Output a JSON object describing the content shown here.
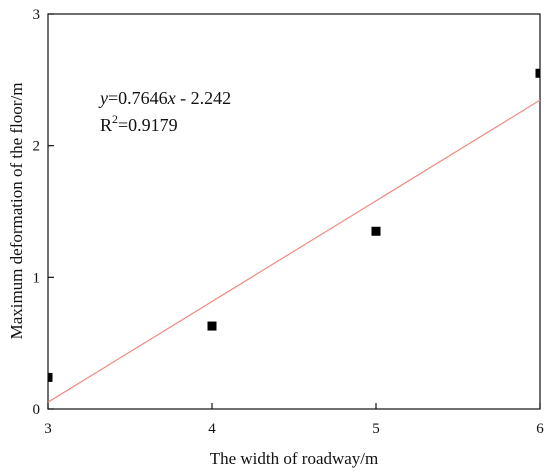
{
  "chart_data": {
    "type": "scatter",
    "title": "",
    "xlabel": "The width of roadway/m",
    "ylabel": "Maximum deformation of the floor/m",
    "xlim": [
      3,
      6
    ],
    "ylim": [
      0,
      3
    ],
    "x_ticks": [
      3,
      4,
      5,
      6
    ],
    "y_ticks": [
      0,
      1,
      2,
      3
    ],
    "grid": false,
    "legend": "none",
    "series": [
      {
        "x": [
          3,
          4,
          5,
          6
        ],
        "y": [
          0.24,
          0.63,
          1.35,
          2.55
        ],
        "marker": "square",
        "color": "#000000"
      }
    ],
    "fit_line": {
      "slope": 0.7646,
      "intercept": -2.242,
      "color": "#f08a80"
    },
    "annotation": {
      "y_symbol": "y",
      "equation_mid": "=0.7646",
      "x_symbol": "x",
      "equation_tail": " - 2.242",
      "r2_base": "R",
      "r2_sup": "2",
      "r2_value": "=0.9179"
    }
  }
}
